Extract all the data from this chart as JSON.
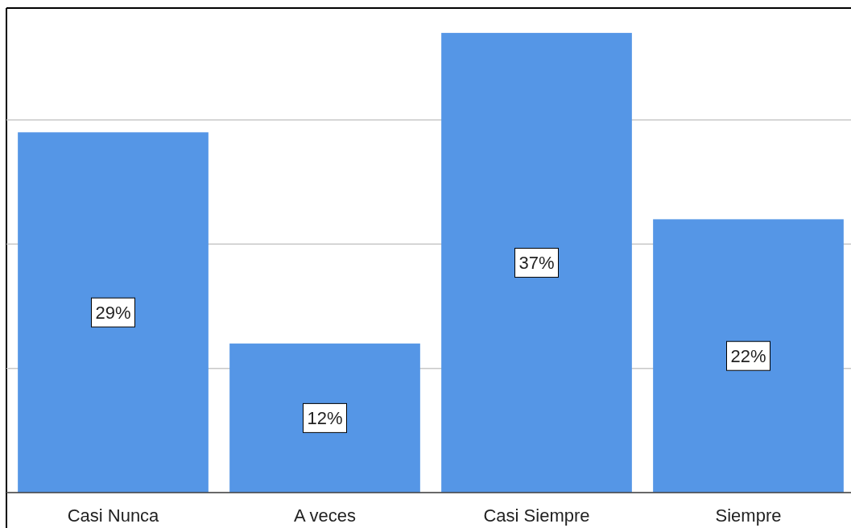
{
  "chart_data": {
    "type": "bar",
    "categories": [
      "Casi Nunca",
      "A veces",
      "Casi Siempre",
      "Siempre"
    ],
    "values": [
      29,
      12,
      37,
      22
    ],
    "value_labels": [
      "29%",
      "12%",
      "37%",
      "22%"
    ],
    "color": "#5596e6",
    "ylim": [
      0,
      39
    ],
    "yticks": [
      {
        "value": 0,
        "label": null
      },
      {
        "value": 10,
        "label": null
      },
      {
        "value": 20,
        "label": null
      },
      {
        "value": 30,
        "label": null
      }
    ],
    "grid": "y",
    "tick_labels": "x"
  }
}
